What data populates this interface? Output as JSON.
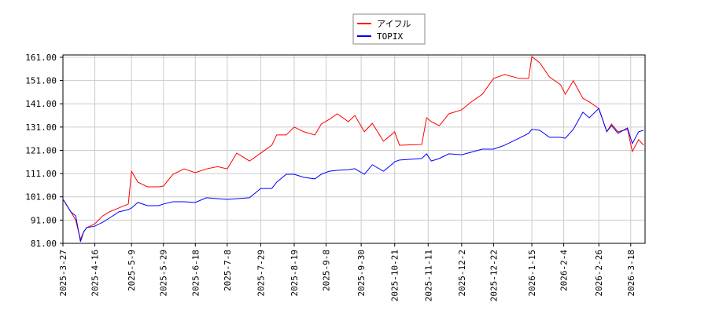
{
  "chart_data": {
    "type": "line",
    "x": [
      "2025-3-27",
      "2025-4-1",
      "2025-4-4",
      "2025-4-7",
      "2025-4-9",
      "2025-4-11",
      "2025-4-16",
      "2025-4-21",
      "2025-4-25",
      "2025-5-1",
      "2025-5-7",
      "2025-5-9",
      "2025-5-13",
      "2025-5-19",
      "2025-5-26",
      "2025-5-29",
      "2025-6-4",
      "2025-6-11",
      "2025-6-18",
      "2025-6-25",
      "2025-7-2",
      "2025-7-8",
      "2025-7-14",
      "2025-7-22",
      "2025-7-29",
      "2025-8-5",
      "2025-8-8",
      "2025-8-14",
      "2025-8-19",
      "2025-8-25",
      "2025-9-1",
      "2025-9-5",
      "2025-9-10",
      "2025-9-15",
      "2025-9-22",
      "2025-9-26",
      "2025-10-2",
      "2025-10-7",
      "2025-10-14",
      "2025-10-20",
      "2025-10-21",
      "2025-10-24",
      "2025-11-7",
      "2025-11-10",
      "2025-11-13",
      "2025-11-18",
      "2025-11-24",
      "2025-12-2",
      "2025-12-8",
      "2025-12-15",
      "2025-12-22",
      "2025-12-29",
      "2026-1-7",
      "2026-1-13",
      "2026-1-15",
      "2026-1-20",
      "2026-1-26",
      "2026-2-2",
      "2026-2-5",
      "2026-2-10",
      "2026-2-16",
      "2026-2-20",
      "2026-2-26",
      "2026-3-3",
      "2026-3-6",
      "2026-3-10",
      "2026-3-16",
      "2026-3-19",
      "2026-3-23",
      "2026-3-26"
    ],
    "series": [
      {
        "name": "アイフル",
        "color": "#ff0000",
        "values": [
          100,
          94.5,
          91,
          82.7,
          86,
          87.8,
          89.4,
          92.8,
          94.5,
          96.2,
          97.9,
          112,
          107.3,
          105.3,
          105.3,
          105.6,
          110.7,
          113,
          111.4,
          113,
          114,
          113,
          119.8,
          116.4,
          119.8,
          123.2,
          127.6,
          127.6,
          131,
          129,
          127.6,
          132.3,
          134.3,
          136.7,
          133.3,
          136,
          129,
          132.6,
          124.9,
          128.3,
          129,
          123.2,
          123.5,
          135,
          133.3,
          131.6,
          136.7,
          138.4,
          141.8,
          145.1,
          151.9,
          153.6,
          151.9,
          151.9,
          161.3,
          158.6,
          152.6,
          149.2,
          145.1,
          150.9,
          143.4,
          141.8,
          139,
          129,
          132.3,
          129,
          130,
          120.5,
          125.6,
          123.2
        ]
      },
      {
        "name": "TOPIX",
        "color": "#0000ff",
        "values": [
          100,
          94.5,
          92.8,
          81.7,
          86,
          87.8,
          88.4,
          90.1,
          91.8,
          94.5,
          95.5,
          96.2,
          98.6,
          97.2,
          97.2,
          97.9,
          98.9,
          98.9,
          98.6,
          100.6,
          100.2,
          99.9,
          100.2,
          100.6,
          104.6,
          104.6,
          107.3,
          110.7,
          110.7,
          109.4,
          108.7,
          110.7,
          112,
          112.4,
          112.7,
          113.1,
          110.7,
          114.8,
          112,
          115.4,
          116.1,
          116.8,
          117.5,
          119.5,
          116.4,
          117.5,
          119.5,
          119.1,
          120.2,
          121.5,
          121.5,
          123.2,
          126.2,
          128.3,
          130,
          129.6,
          126.6,
          126.6,
          126.2,
          130,
          137.4,
          135,
          139,
          129,
          131.6,
          128.3,
          130.6,
          123.9,
          129,
          129.6
        ]
      }
    ],
    "xlim": [
      "2025-3-27",
      "2026-3-27"
    ],
    "xticks": [
      "2025-3-27",
      "2025-4-16",
      "2025-5-9",
      "2025-5-29",
      "2025-6-18",
      "2025-7-8",
      "2025-7-29",
      "2025-8-19",
      "2025-9-8",
      "2025-9-30",
      "2025-10-21",
      "2025-11-11",
      "2025-12-2",
      "2025-12-22",
      "2026-1-15",
      "2026-2-4",
      "2026-2-26",
      "2026-3-18"
    ],
    "ylim": [
      81,
      162
    ],
    "yticks": [
      {
        "value": 81,
        "label": "81.00"
      },
      {
        "value": 91,
        "label": "91.00"
      },
      {
        "value": 101,
        "label": "101.00"
      },
      {
        "value": 111,
        "label": "111.00"
      },
      {
        "value": 121,
        "label": "121.00"
      },
      {
        "value": 131,
        "label": "131.00"
      },
      {
        "value": 141,
        "label": "141.00"
      },
      {
        "value": 151,
        "label": "151.00"
      },
      {
        "value": 161,
        "label": "161.00"
      }
    ],
    "grid": true
  }
}
